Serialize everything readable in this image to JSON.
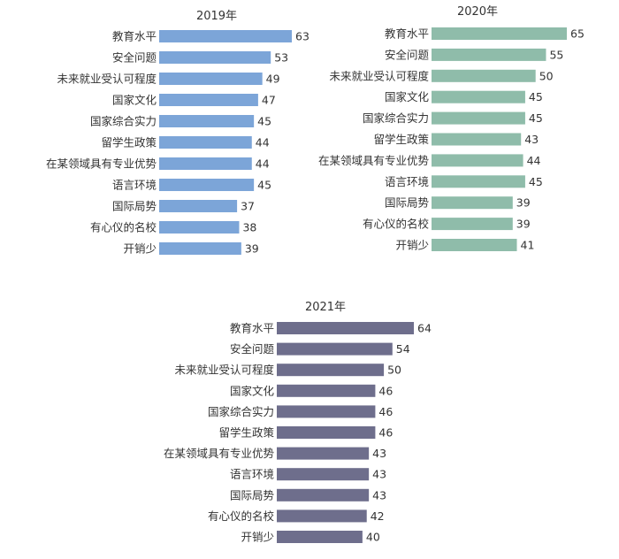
{
  "chart_data": [
    {
      "type": "bar",
      "orientation": "horizontal",
      "title": "2019年",
      "color": "#7ca5d8",
      "categories": [
        "教育水平",
        "安全问题",
        "未来就业受认可程度",
        "国家文化",
        "国家综合实力",
        "留学生政策",
        "在某领域具有专业优势",
        "语言环境",
        "国际局势",
        "有心仪的名校",
        "开销少"
      ],
      "values": [
        63,
        53,
        49,
        47,
        45,
        44,
        44,
        45,
        37,
        38,
        39
      ]
    },
    {
      "type": "bar",
      "orientation": "horizontal",
      "title": "2020年",
      "color": "#8fbcaa",
      "categories": [
        "教育水平",
        "安全问题",
        "未来就业受认可程度",
        "国家文化",
        "国家综合实力",
        "留学生政策",
        "在某领域具有专业优势",
        "语言环境",
        "国际局势",
        "有心仪的名校",
        "开销少"
      ],
      "values": [
        65,
        55,
        50,
        45,
        45,
        43,
        44,
        45,
        39,
        39,
        41
      ]
    },
    {
      "type": "bar",
      "orientation": "horizontal",
      "title": "2021年",
      "color": "#6e6e8c",
      "categories": [
        "教育水平",
        "安全问题",
        "未来就业受认可程度",
        "国家文化",
        "国家综合实力",
        "留学生政策",
        "在某领域具有专业优势",
        "语言环境",
        "国际局势",
        "有心仪的名校",
        "开销少"
      ],
      "values": [
        64,
        54,
        50,
        46,
        46,
        46,
        43,
        43,
        43,
        42,
        40
      ]
    }
  ]
}
